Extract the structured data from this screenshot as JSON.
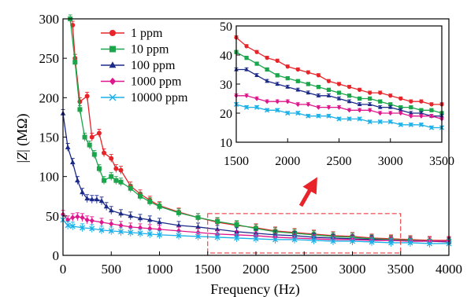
{
  "chart_data": [
    {
      "id": "main",
      "type": "line",
      "xlabel": "Frequency (Hz)",
      "ylabel_prefix": "|",
      "ylabel_var": "Z",
      "ylabel_suffix": "| (MΩ)",
      "xlim": [
        0,
        4000
      ],
      "ylim": [
        0,
        300
      ],
      "xticks": [
        "0",
        "500",
        "1000",
        "1500",
        "2000",
        "2500",
        "3000",
        "3500",
        "4000"
      ],
      "yticks": [
        "0",
        "50",
        "100",
        "150",
        "200",
        "250",
        "300"
      ],
      "grid": false,
      "legend_position": "top-left",
      "series": [
        {
          "name": "1 ppm",
          "color": "#e8242a",
          "marker": "circle",
          "x": [
            100,
            125,
            175,
            250,
            300,
            375,
            425,
            500,
            550,
            600,
            700,
            800,
            900,
            1000,
            1200,
            1400,
            1600,
            1800,
            2000,
            2200,
            2400,
            2600,
            2800,
            3000,
            3200,
            3400,
            3600,
            3800,
            4000
          ],
          "y": [
            292,
            250,
            195,
            202,
            150,
            155,
            130,
            123,
            110,
            108,
            88,
            78,
            70,
            63,
            55,
            48,
            42,
            38,
            35,
            31,
            29,
            27,
            25,
            24,
            22,
            21,
            20,
            19,
            19
          ]
        },
        {
          "name": "10 ppm",
          "color": "#1aa64a",
          "marker": "square",
          "x": [
            75,
            125,
            175,
            225,
            275,
            325,
            375,
            425,
            500,
            550,
            600,
            700,
            800,
            900,
            1000,
            1200,
            1400,
            1600,
            1800,
            2000,
            2200,
            2400,
            2600,
            2800,
            3000,
            3200,
            3400,
            3600,
            3800,
            4000
          ],
          "y": [
            300,
            245,
            185,
            150,
            140,
            128,
            110,
            95,
            100,
            95,
            93,
            85,
            75,
            68,
            62,
            54,
            48,
            43,
            39,
            34,
            30,
            28,
            26,
            24,
            23,
            21,
            20,
            19,
            18,
            18
          ]
        },
        {
          "name": "100 ppm",
          "color": "#1c2a88",
          "marker": "triangle",
          "x": [
            0,
            50,
            100,
            150,
            200,
            250,
            300,
            350,
            400,
            450,
            500,
            600,
            700,
            800,
            900,
            1000,
            1200,
            1400,
            1600,
            1800,
            2000,
            2200,
            2400,
            2600,
            2800,
            3000,
            3200,
            3400,
            3600,
            3800,
            4000
          ],
          "y": [
            180,
            137,
            118,
            95,
            80,
            72,
            71,
            71,
            69,
            62,
            57,
            53,
            50,
            47,
            45,
            42,
            38,
            36,
            33,
            30,
            28,
            26,
            25,
            23,
            22,
            21,
            20,
            19,
            18,
            18,
            17
          ]
        },
        {
          "name": "1000 ppm",
          "color": "#e0168c",
          "marker": "diamond",
          "x": [
            0,
            50,
            100,
            150,
            200,
            250,
            300,
            400,
            500,
            600,
            700,
            800,
            900,
            1000,
            1200,
            1400,
            1600,
            1800,
            2000,
            2200,
            2400,
            2600,
            2800,
            3000,
            3200,
            3400,
            3600,
            3800,
            4000
          ],
          "y": [
            52,
            45,
            48,
            49,
            48,
            45,
            44,
            42,
            40,
            38,
            36,
            35,
            34,
            33,
            31,
            29,
            27,
            26,
            25,
            23,
            22,
            21,
            20,
            20,
            19,
            19,
            18,
            18,
            18
          ]
        },
        {
          "name": "10000 ppm",
          "color": "#1ab0e8",
          "marker": "x",
          "x": [
            0,
            50,
            100,
            200,
            300,
            400,
            500,
            600,
            700,
            800,
            900,
            1000,
            1200,
            1400,
            1600,
            1800,
            2000,
            2200,
            2400,
            2600,
            2800,
            3000,
            3200,
            3400,
            3600,
            3800,
            4000
          ],
          "y": [
            45,
            38,
            37,
            35,
            34,
            32,
            31,
            30,
            29,
            28,
            27,
            26,
            25,
            24,
            23,
            22,
            21,
            20,
            20,
            19,
            18,
            18,
            17,
            16,
            16,
            15,
            15
          ]
        }
      ],
      "highlight_region": {
        "x": [
          1500,
          3500
        ],
        "y": [
          3,
          53
        ],
        "color": "#e8242a"
      }
    },
    {
      "id": "inset",
      "type": "line",
      "xlim": [
        1500,
        3500
      ],
      "ylim": [
        10,
        50
      ],
      "xticks": [
        "1500",
        "2000",
        "2500",
        "3000",
        "3500"
      ],
      "yticks": [
        "10",
        "20",
        "30",
        "40",
        "50"
      ],
      "grid": false,
      "series": [
        {
          "name": "1 ppm",
          "color": "#e8242a",
          "marker": "circle",
          "x": [
            1500,
            1600,
            1700,
            1800,
            1900,
            2000,
            2100,
            2200,
            2300,
            2400,
            2500,
            2600,
            2700,
            2800,
            2900,
            3000,
            3100,
            3200,
            3300,
            3400,
            3500
          ],
          "y": [
            46,
            43,
            41,
            39,
            38,
            36,
            35,
            34,
            33,
            31,
            30,
            29,
            28,
            27,
            27,
            26,
            25,
            24,
            24,
            23,
            23
          ]
        },
        {
          "name": "10 ppm",
          "color": "#1aa64a",
          "marker": "square",
          "x": [
            1500,
            1600,
            1700,
            1800,
            1900,
            2000,
            2100,
            2200,
            2300,
            2400,
            2500,
            2600,
            2700,
            2800,
            2900,
            3000,
            3100,
            3200,
            3300,
            3400,
            3500
          ],
          "y": [
            41,
            39,
            37,
            35,
            33,
            32,
            31,
            30,
            29,
            28,
            27,
            26,
            25,
            25,
            24,
            23,
            22,
            22,
            21,
            21,
            20
          ]
        },
        {
          "name": "100 ppm",
          "color": "#1c2a88",
          "marker": "triangle",
          "x": [
            1500,
            1600,
            1700,
            1800,
            1900,
            2000,
            2100,
            2200,
            2300,
            2400,
            2500,
            2600,
            2700,
            2800,
            2900,
            3000,
            3100,
            3200,
            3300,
            3400,
            3500
          ],
          "y": [
            35,
            35,
            33,
            31,
            30,
            29,
            28,
            27,
            26,
            26,
            25,
            24,
            23,
            23,
            22,
            22,
            21,
            20,
            20,
            19,
            19
          ]
        },
        {
          "name": "1000 ppm",
          "color": "#e0168c",
          "marker": "diamond",
          "x": [
            1500,
            1600,
            1700,
            1800,
            1900,
            2000,
            2100,
            2200,
            2300,
            2400,
            2500,
            2600,
            2700,
            2800,
            2900,
            3000,
            3100,
            3200,
            3300,
            3400,
            3500
          ],
          "y": [
            26,
            26,
            25,
            24,
            24,
            24,
            23,
            23,
            22,
            22,
            22,
            21,
            21,
            21,
            20,
            20,
            20,
            19,
            19,
            19,
            18
          ]
        },
        {
          "name": "10000 ppm",
          "color": "#1ab0e8",
          "marker": "x",
          "x": [
            1500,
            1600,
            1700,
            1800,
            1900,
            2000,
            2100,
            2200,
            2300,
            2400,
            2500,
            2600,
            2700,
            2800,
            2900,
            3000,
            3100,
            3200,
            3300,
            3400,
            3500
          ],
          "y": [
            23,
            22,
            22,
            21,
            21,
            20,
            20,
            19,
            19,
            19,
            18,
            18,
            18,
            17,
            17,
            17,
            16,
            16,
            16,
            15,
            15
          ]
        }
      ]
    }
  ]
}
